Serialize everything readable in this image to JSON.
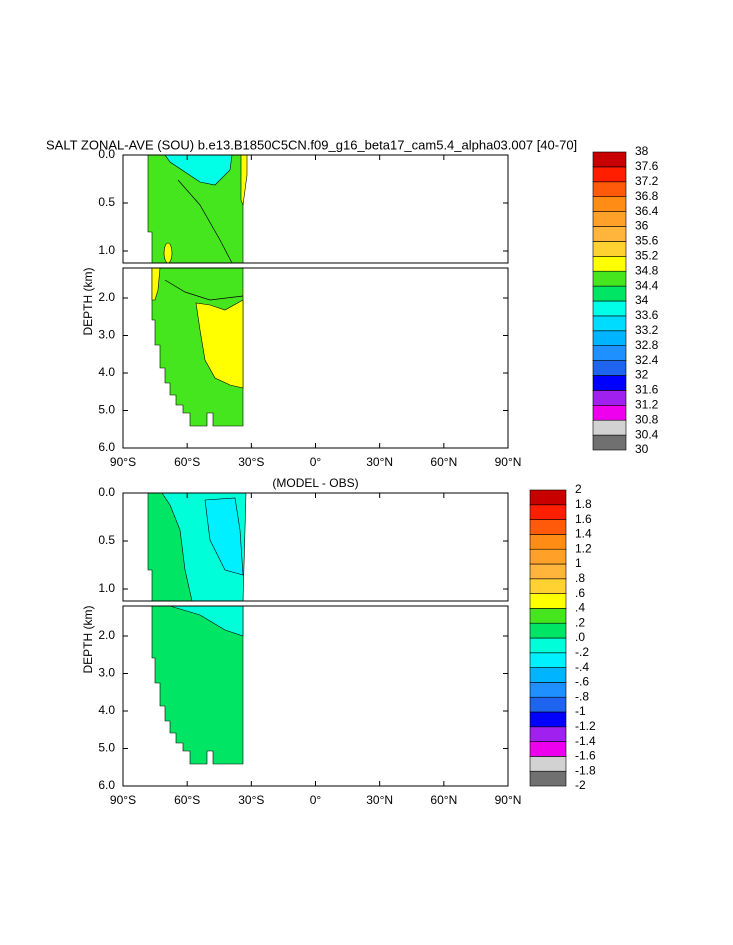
{
  "chart_data": [
    {
      "type": "contour",
      "title": "SALT ZONAL-AVE (SOU) b.e13.B1850C5CN.f09_g16_beta17_cam5.4_alpha03.007 [40-70]",
      "ylabel": "DEPTH (km)",
      "xlim": [
        -90,
        90
      ],
      "xticks": [
        {
          "value": -90,
          "label": "90°S"
        },
        {
          "value": -60,
          "label": "60°S"
        },
        {
          "value": -30,
          "label": "30°S"
        },
        {
          "value": 0,
          "label": "0°"
        },
        {
          "value": 30,
          "label": "30°N"
        },
        {
          "value": 60,
          "label": "60°N"
        },
        {
          "value": 90,
          "label": "90°N"
        }
      ],
      "panels": [
        {
          "ylim": [
            0,
            1.125
          ],
          "yticks": [
            {
              "value": 0,
              "label": "0.0"
            },
            0.5,
            {
              "value": 1,
              "label": "1.0"
            }
          ]
        },
        {
          "ylim": [
            1.2,
            6
          ],
          "yticks": [
            {
              "value": 2,
              "label": "2.0"
            },
            {
              "value": 3,
              "label": "3.0"
            },
            {
              "value": 4,
              "label": "4.0"
            },
            {
              "value": 5,
              "label": "5.0"
            },
            {
              "value": 6,
              "label": "6.0"
            }
          ]
        }
      ],
      "colorbar": {
        "levels": [
          30,
          30.4,
          30.8,
          31.2,
          31.6,
          32,
          32.4,
          32.8,
          33.2,
          33.6,
          34,
          34.4,
          34.8,
          35.2,
          35.6,
          36,
          36.4,
          36.8,
          37.2,
          37.6,
          38
        ],
        "colors": [
          "#707070",
          "#d2d2d2",
          "#ee00ee",
          "#a020f0",
          "#0000ff",
          "#1e64ee",
          "#1e90ff",
          "#00b4ff",
          "#00dcff",
          "#00ffe6",
          "#00e664",
          "#46e61e",
          "#ffff00",
          "#ffd232",
          "#ffb43c",
          "#ffa028",
          "#ff8c14",
          "#ff5a0a",
          "#ff1e00",
          "#c80000"
        ]
      }
    },
    {
      "type": "contour",
      "subtitle": "(MODEL - OBS)",
      "ylabel": "DEPTH (km)",
      "xlim": [
        -90,
        90
      ],
      "xticks": [
        {
          "value": -90,
          "label": "90°S"
        },
        {
          "value": -60,
          "label": "60°S"
        },
        {
          "value": -30,
          "label": "30°S"
        },
        {
          "value": 0,
          "label": "0°"
        },
        {
          "value": 30,
          "label": "30°N"
        },
        {
          "value": 60,
          "label": "60°N"
        },
        {
          "value": 90,
          "label": "90°N"
        }
      ],
      "panels": [
        {
          "ylim": [
            0,
            1.125
          ],
          "yticks": [
            {
              "value": 0,
              "label": "0.0"
            },
            0.5,
            {
              "value": 1,
              "label": "1.0"
            }
          ]
        },
        {
          "ylim": [
            1.2,
            6
          ],
          "yticks": [
            {
              "value": 2,
              "label": "2.0"
            },
            {
              "value": 3,
              "label": "3.0"
            },
            {
              "value": 4,
              "label": "4.0"
            },
            {
              "value": 5,
              "label": "5.0"
            },
            {
              "value": 6,
              "label": "6.0"
            }
          ]
        }
      ],
      "colorbar": {
        "levels": [
          -2,
          -1.8,
          -1.6,
          -1.4,
          -1.2,
          -1,
          {
            "value": -0.8,
            "label": "-.8"
          },
          {
            "value": -0.6,
            "label": "-.6"
          },
          {
            "value": -0.4,
            "label": "-.4"
          },
          {
            "value": -0.2,
            "label": "-.2"
          },
          {
            "value": 0,
            "label": ".0"
          },
          {
            "value": 0.2,
            "label": ".2"
          },
          {
            "value": 0.4,
            "label": ".4"
          },
          {
            "value": 0.6,
            "label": ".6"
          },
          {
            "value": 0.8,
            "label": ".8"
          },
          1,
          1.2,
          1.4,
          1.6,
          1.8,
          2
        ],
        "colors": [
          "#707070",
          "#d2d2d2",
          "#ee00ee",
          "#a020f0",
          "#0000ff",
          "#1e64ee",
          "#1e90ff",
          "#00b4ff",
          "#00f0ff",
          "#00ffd8",
          "#00e664",
          "#46e61e",
          "#ffff00",
          "#ffd232",
          "#ffb43c",
          "#ffa028",
          "#ff8c14",
          "#ff5a0a",
          "#ff1e00",
          "#c80000"
        ]
      }
    }
  ]
}
